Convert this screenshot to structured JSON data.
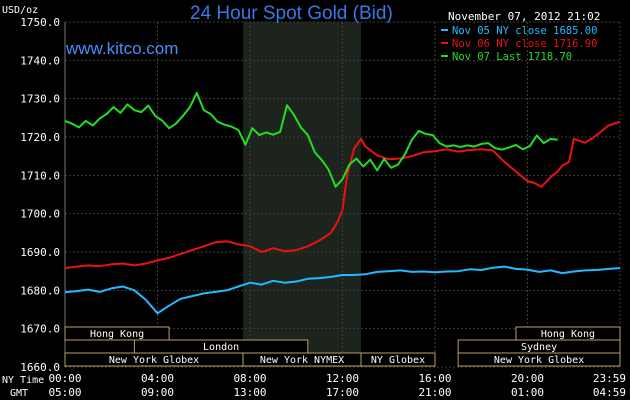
{
  "chart_data": {
    "type": "line",
    "title": "24 Hour Spot Gold (Bid)",
    "site": "www.kitco.com",
    "ylabel": "USD/oz",
    "timestamp": "November 07, 2012 21:02",
    "ylim": [
      1660,
      1750
    ],
    "ytick_labels": [
      "1750.0",
      "1740.0",
      "1730.0",
      "1720.0",
      "1710.0",
      "1700.0",
      "1690.0",
      "1680.0",
      "1670.0",
      "1660.0"
    ],
    "ytick_values": [
      1750,
      1740,
      1730,
      1720,
      1710,
      1700,
      1690,
      1680,
      1670,
      1660
    ],
    "xlim": [
      0,
      24
    ],
    "x_row_labels": {
      "ny": "NY Time",
      "gmt": "GMT"
    },
    "xticks_ny": [
      "00:00",
      "04:00",
      "08:00",
      "12:00",
      "16:00",
      "20:00",
      "23:59"
    ],
    "xticks_gmt": [
      "05:00",
      "09:00",
      "13:00",
      "17:00",
      "21:00",
      "01:00",
      "04:59"
    ],
    "xtick_positions": [
      0,
      4,
      8,
      12,
      16,
      20,
      24
    ],
    "grid": true,
    "legend_position": "top-right",
    "series": [
      {
        "name": "Nov 05 NY close 1685.00",
        "color": "#22bbff",
        "x": [
          0,
          0.5,
          1,
          1.5,
          2,
          2.5,
          3,
          3.5,
          4,
          4.5,
          5,
          5.5,
          6,
          6.5,
          7,
          7.5,
          8,
          8.5,
          9,
          9.5,
          10,
          10.5,
          11,
          11.5,
          12,
          12.5,
          13,
          13.5,
          14,
          14.5,
          15,
          15.5,
          16,
          16.5,
          17,
          17.5,
          18,
          18.5,
          19,
          19.5,
          20,
          20.5,
          21,
          21.5,
          22,
          22.5,
          23,
          23.5,
          24
        ],
        "values": [
          1679.5,
          1679.8,
          1680.2,
          1679.6,
          1680.5,
          1681,
          1680,
          1677.5,
          1674,
          1676,
          1677.8,
          1678.5,
          1679.2,
          1679.6,
          1680,
          1681,
          1682,
          1681.5,
          1682.5,
          1682,
          1682.3,
          1683,
          1683.2,
          1683.5,
          1684,
          1684,
          1684.2,
          1684.8,
          1685,
          1685.2,
          1684.8,
          1684.9,
          1684.7,
          1684.9,
          1685,
          1685.5,
          1685.3,
          1685.9,
          1686.2,
          1685.6,
          1685.4,
          1684.8,
          1685.2,
          1684.5,
          1684.9,
          1685.2,
          1685.3,
          1685.6,
          1685.8
        ]
      },
      {
        "name": "Nov 06 NY close 1716.90",
        "color": "#ee1111",
        "x": [
          0,
          0.5,
          1,
          1.5,
          2,
          2.5,
          3,
          3.5,
          4,
          4.5,
          5,
          5.5,
          6,
          6.5,
          7,
          7.5,
          8,
          8.5,
          9,
          9.5,
          10,
          10.5,
          11,
          11.5,
          11.8,
          12,
          12.2,
          12.5,
          12.8,
          13,
          13.5,
          14,
          14.5,
          15,
          15.5,
          16,
          16.5,
          17,
          17.5,
          18,
          18.5,
          19,
          19.5,
          20,
          20.3,
          20.6,
          21,
          21.3,
          21.5,
          21.8,
          22,
          22.5,
          23,
          23.5,
          24
        ],
        "values": [
          1685.8,
          1686.2,
          1686.5,
          1686.3,
          1686.8,
          1687,
          1686.5,
          1687,
          1687.8,
          1688.5,
          1689.5,
          1690.5,
          1691.5,
          1692.5,
          1692.8,
          1692,
          1691.5,
          1690,
          1691,
          1690.2,
          1690.5,
          1691.5,
          1693,
          1695,
          1698,
          1701,
          1710,
          1717,
          1719.5,
          1717.5,
          1715.2,
          1714.2,
          1714.4,
          1715,
          1716,
          1716.3,
          1716.8,
          1716.2,
          1716.6,
          1716.8,
          1716.5,
          1713.5,
          1711,
          1708.5,
          1708,
          1707,
          1709.5,
          1711,
          1712.5,
          1713.5,
          1719.5,
          1718.5,
          1720.5,
          1723,
          1724
        ]
      },
      {
        "name": "Nov 07 Last 1718.70",
        "color": "#22dd22",
        "x": [
          0,
          0.3,
          0.6,
          0.9,
          1.2,
          1.5,
          1.8,
          2.1,
          2.4,
          2.7,
          3,
          3.3,
          3.6,
          3.9,
          4.2,
          4.5,
          4.8,
          5.1,
          5.4,
          5.7,
          6,
          6.3,
          6.6,
          6.9,
          7.2,
          7.5,
          7.8,
          8.1,
          8.4,
          8.7,
          9,
          9.3,
          9.6,
          9.9,
          10.2,
          10.5,
          10.8,
          11.1,
          11.4,
          11.7,
          12,
          12.3,
          12.6,
          12.9,
          13.2,
          13.5,
          13.8,
          14.1,
          14.4,
          14.7,
          15,
          15.3,
          15.6,
          15.9,
          16.2,
          16.5,
          16.8,
          17.1,
          17.4,
          17.7,
          18,
          18.3,
          18.6,
          18.9,
          19.2,
          19.5,
          19.8,
          20.1,
          20.4,
          20.7,
          21,
          21.3
        ],
        "values": [
          1724.2,
          1723.5,
          1722.5,
          1724.2,
          1723,
          1724.8,
          1726,
          1727.8,
          1726.3,
          1728.5,
          1727,
          1726.5,
          1728.2,
          1725.5,
          1724.3,
          1722.3,
          1723.5,
          1725.5,
          1727.8,
          1731.5,
          1727,
          1726,
          1724,
          1723.2,
          1722.7,
          1721.8,
          1718,
          1722.3,
          1720.5,
          1721.2,
          1720.6,
          1721.3,
          1728.3,
          1725.8,
          1722.5,
          1720.5,
          1716,
          1714,
          1711.5,
          1707,
          1709,
          1712.8,
          1714.4,
          1712.3,
          1714.1,
          1711.3,
          1714.3,
          1712,
          1712.8,
          1715.5,
          1719.3,
          1721.6,
          1720.8,
          1720.5,
          1718.4,
          1717.5,
          1717.8,
          1717.4,
          1717.8,
          1717.5,
          1718.2,
          1718.4,
          1717.1,
          1716.7,
          1717.3,
          1717.9,
          1716.8,
          1717.6,
          1720.4,
          1718.4,
          1719.5,
          1719.3
        ]
      }
    ],
    "markets": [
      {
        "label": "Hong Kong",
        "row": 0,
        "start": 0,
        "end": 4.5
      },
      {
        "label": "Hong Kong",
        "row": 0,
        "start": 19.5,
        "end": 24
      },
      {
        "label": "London",
        "row": 1,
        "start": 3,
        "end": 10.5
      },
      {
        "label": "Sydney",
        "row": 1,
        "start": 17,
        "end": 24
      },
      {
        "label": "New York Globex",
        "row": 2,
        "start": 0,
        "end": 7.7
      },
      {
        "label": "New York NYMEX",
        "row": 2,
        "start": 7.7,
        "end": 12.8
      },
      {
        "label": "NY Globex",
        "row": 2,
        "start": 12.8,
        "end": 16
      },
      {
        "label": "New York Globex",
        "row": 2,
        "start": 17,
        "end": 24
      }
    ],
    "shaded_x_range": [
      7.7,
      12.8
    ]
  }
}
